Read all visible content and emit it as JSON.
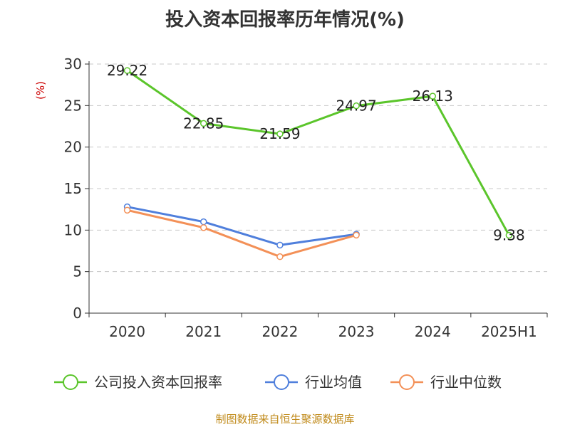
{
  "chart_data": {
    "type": "line",
    "title": "投入资本回报率历年情况(%)",
    "ylabel": "(%)",
    "xlabel": "",
    "categories": [
      "2020",
      "2021",
      "2022",
      "2023",
      "2024",
      "2025H1"
    ],
    "ylim": [
      0,
      30
    ],
    "yticks": [
      "0",
      "5",
      "10",
      "15",
      "20",
      "25",
      "30"
    ],
    "grid": "horizontal dashed",
    "legend_position": "bottom",
    "series": [
      {
        "name": "公司投入资本回报率",
        "color": "#5bc52b",
        "values": [
          29.22,
          22.85,
          21.59,
          24.97,
          26.13,
          9.38
        ],
        "labels": [
          "29.22",
          "22.85",
          "21.59",
          "24.97",
          "26.13",
          "9.38"
        ]
      },
      {
        "name": "行业均值",
        "color": "#4f7fdc",
        "values": [
          12.8,
          11.0,
          8.2,
          9.5,
          null,
          null
        ]
      },
      {
        "name": "行业中位数",
        "color": "#f39057",
        "values": [
          12.4,
          10.3,
          6.8,
          9.4,
          null,
          null
        ]
      }
    ],
    "source": "制图数据来自恒生聚源数据库"
  }
}
